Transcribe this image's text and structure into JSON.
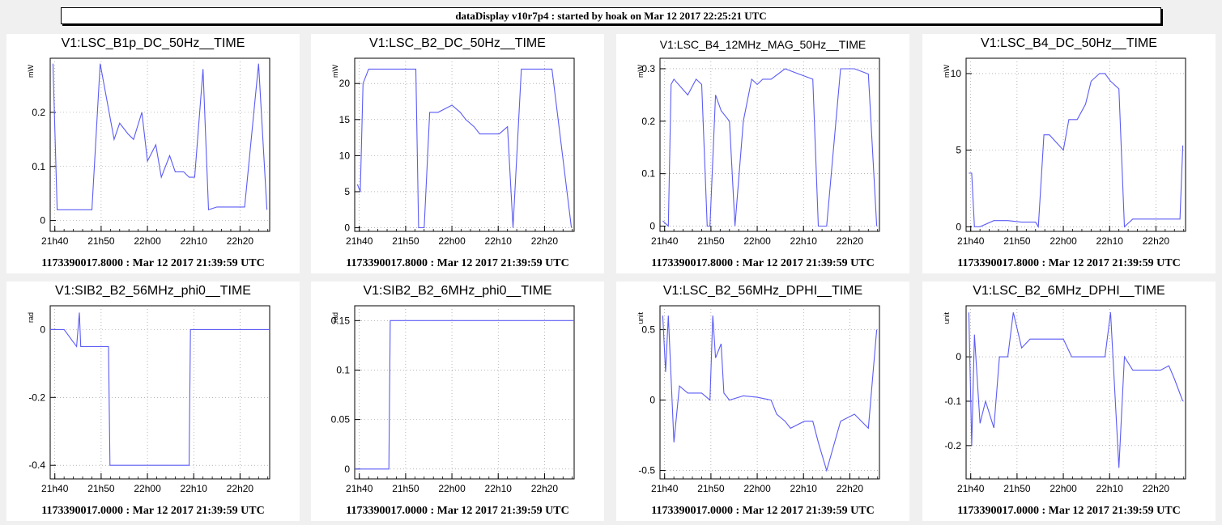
{
  "banner": "dataDisplay v10r7p4 : started by hoak on Mar 12 2017 22:25:21 UTC",
  "colors": {
    "trace": "#5b5bf5",
    "panel": "#ffffff",
    "background": "#f0f0f0"
  },
  "chart_data": [
    {
      "type": "line",
      "title": "V1:LSC_B1p_DC_50Hz__TIME",
      "ylabel": "mW",
      "footer": "1173390017.8000 : Mar 12 2017 21:39:59 UTC",
      "xlim": [
        21.65,
        22.44
      ],
      "ylim": [
        -0.02,
        0.3
      ],
      "x_ticks": [
        "21h40",
        "21h50",
        "22h00",
        "22h10",
        "22h20"
      ],
      "y_ticks": [
        0,
        0.1,
        0.2
      ],
      "y_tick_labels": [
        "0",
        "0.1",
        "0.2"
      ],
      "x": [
        21.66,
        21.675,
        21.7,
        21.75,
        21.8,
        21.83,
        21.88,
        21.9,
        21.93,
        21.95,
        21.98,
        22.0,
        22.03,
        22.05,
        22.08,
        22.1,
        22.13,
        22.15,
        22.17,
        22.2,
        22.22,
        22.25,
        22.3,
        22.35,
        22.4,
        22.43
      ],
      "y": [
        0.29,
        0.02,
        0.02,
        0.02,
        0.02,
        0.29,
        0.15,
        0.18,
        0.16,
        0.15,
        0.2,
        0.11,
        0.14,
        0.08,
        0.12,
        0.09,
        0.09,
        0.08,
        0.08,
        0.28,
        0.02,
        0.025,
        0.025,
        0.025,
        0.29,
        0.02
      ]
    },
    {
      "type": "line",
      "title": "V1:LSC_B2_DC_50Hz__TIME",
      "ylabel": "mW",
      "footer": "1173390017.8000 : Mar 12 2017 21:39:59 UTC",
      "xlim": [
        21.65,
        22.44
      ],
      "ylim": [
        -0.5,
        23.5
      ],
      "x_ticks": [
        "21h40",
        "21h50",
        "22h00",
        "22h10",
        "22h20"
      ],
      "y_ticks": [
        0,
        5,
        10,
        15,
        20
      ],
      "y_tick_labels": [
        "0",
        "5",
        "10",
        "15",
        "20"
      ],
      "x": [
        21.66,
        21.67,
        21.68,
        21.7,
        21.75,
        21.8,
        21.87,
        21.88,
        21.9,
        21.92,
        21.95,
        22.0,
        22.03,
        22.05,
        22.08,
        22.1,
        22.13,
        22.15,
        22.17,
        22.2,
        22.22,
        22.25,
        22.3,
        22.35,
        22.36,
        22.43
      ],
      "y": [
        6,
        5,
        20,
        22,
        22,
        22,
        22,
        0,
        0,
        16,
        16,
        17,
        16,
        15,
        14,
        13,
        13,
        13,
        13,
        14,
        0,
        22,
        22,
        22,
        22,
        0
      ]
    },
    {
      "type": "line",
      "title": "V1:LSC_B4_12MHz_MAG_50Hz__TIME",
      "ylabel": "mW",
      "footer": "1173390017.8000 : Mar 12 2017 21:39:59 UTC",
      "xlim": [
        21.65,
        22.44
      ],
      "ylim": [
        -0.01,
        0.32
      ],
      "x_ticks": [
        "21h40",
        "21h50",
        "22h00",
        "22h10",
        "22h20"
      ],
      "y_ticks": [
        0,
        0.1,
        0.2,
        0.3
      ],
      "y_tick_labels": [
        "0",
        "0.1",
        "0.2",
        "0.3"
      ],
      "x": [
        21.66,
        21.68,
        21.69,
        21.7,
        21.75,
        21.78,
        21.8,
        21.82,
        21.83,
        21.85,
        21.87,
        21.9,
        21.92,
        21.95,
        21.98,
        22.0,
        22.02,
        22.05,
        22.1,
        22.15,
        22.2,
        22.22,
        22.25,
        22.3,
        22.35,
        22.4,
        22.43
      ],
      "y": [
        0.01,
        0.0,
        0.27,
        0.28,
        0.25,
        0.28,
        0.27,
        0.0,
        0.0,
        0.25,
        0.22,
        0.2,
        0.0,
        0.2,
        0.28,
        0.27,
        0.28,
        0.28,
        0.3,
        0.29,
        0.28,
        0.0,
        0.0,
        0.3,
        0.3,
        0.29,
        0.0
      ]
    },
    {
      "type": "line",
      "title": "V1:LSC_B4_DC_50Hz__TIME",
      "ylabel": "mW",
      "footer": "1173390017.8000 : Mar 12 2017 21:39:59 UTC",
      "xlim": [
        21.65,
        22.44
      ],
      "ylim": [
        -0.3,
        11
      ],
      "x_ticks": [
        "21h40",
        "21h50",
        "22h00",
        "22h10",
        "22h20"
      ],
      "y_ticks": [
        0,
        5,
        10
      ],
      "y_tick_labels": [
        "0",
        "5",
        "10"
      ],
      "x": [
        21.66,
        21.67,
        21.68,
        21.7,
        21.75,
        21.8,
        21.85,
        21.9,
        21.91,
        21.93,
        21.95,
        22.0,
        22.02,
        22.05,
        22.08,
        22.1,
        22.13,
        22.15,
        22.17,
        22.2,
        22.22,
        22.25,
        22.3,
        22.35,
        22.42,
        22.43
      ],
      "y": [
        3.5,
        3.5,
        0,
        0,
        0.4,
        0.4,
        0.3,
        0.3,
        0,
        6,
        6,
        5,
        7,
        7,
        8,
        9.5,
        10,
        10,
        9.5,
        9,
        0,
        0.5,
        0.5,
        0.5,
        0.5,
        5.3
      ]
    },
    {
      "type": "line",
      "title": "V1:SIB2_B2_56MHz_phi0__TIME",
      "ylabel": "rad",
      "footer": "1173390017.0000 : Mar 12 2017 21:39:59 UTC",
      "xlim": [
        21.65,
        22.44
      ],
      "ylim": [
        -0.44,
        0.07
      ],
      "x_ticks": [
        "21h40",
        "21h50",
        "22h00",
        "22h10",
        "22h20"
      ],
      "y_ticks": [
        -0.4,
        -0.2,
        0
      ],
      "y_tick_labels": [
        "-0.4",
        "-0.2",
        "0"
      ],
      "x": [
        21.65,
        21.7,
        21.745,
        21.755,
        21.76,
        21.77,
        21.8,
        21.86,
        21.865,
        21.9,
        22.0,
        22.1,
        22.15,
        22.155,
        22.2,
        22.3,
        22.44
      ],
      "y": [
        0,
        0,
        -0.05,
        0.05,
        -0.05,
        -0.05,
        -0.05,
        -0.05,
        -0.4,
        -0.4,
        -0.4,
        -0.4,
        -0.4,
        0,
        0,
        0,
        0
      ]
    },
    {
      "type": "line",
      "title": "V1:SIB2_B2_6MHz_phi0__TIME",
      "ylabel": "rad",
      "footer": "1173390017.0000 : Mar 12 2017 21:39:59 UTC",
      "xlim": [
        21.65,
        22.44
      ],
      "ylim": [
        -0.01,
        0.165
      ],
      "x_ticks": [
        "21h40",
        "21h50",
        "22h00",
        "22h10",
        "22h20"
      ],
      "y_ticks": [
        0,
        0.05,
        0.1,
        0.15
      ],
      "y_tick_labels": [
        "0",
        "0.05",
        "0.1",
        "0.15"
      ],
      "x": [
        21.65,
        21.7,
        21.773,
        21.778,
        21.8,
        21.9,
        22.0,
        22.1,
        22.2,
        22.3,
        22.44
      ],
      "y": [
        0,
        0,
        0,
        0.15,
        0.15,
        0.15,
        0.15,
        0.15,
        0.15,
        0.15,
        0.15
      ]
    },
    {
      "type": "line",
      "title": "V1:LSC_B2_56MHz_DPHI__TIME",
      "ylabel": "unit",
      "footer": "1173390017.0000 : Mar 12 2017 21:39:59 UTC",
      "xlim": [
        21.65,
        22.44
      ],
      "ylim": [
        -0.56,
        0.67
      ],
      "x_ticks": [
        "21h40",
        "21h50",
        "22h00",
        "22h10",
        "22h20"
      ],
      "y_ticks": [
        -0.5,
        0,
        0.5
      ],
      "y_tick_labels": [
        "-0.5",
        "0",
        "0.5"
      ],
      "x": [
        21.66,
        21.67,
        21.68,
        21.7,
        21.72,
        21.75,
        21.8,
        21.83,
        21.84,
        21.85,
        21.87,
        21.88,
        21.9,
        21.95,
        22.0,
        22.05,
        22.07,
        22.1,
        22.12,
        22.15,
        22.17,
        22.2,
        22.22,
        22.25,
        22.3,
        22.35,
        22.4,
        22.43
      ],
      "y": [
        0.6,
        0.2,
        0.6,
        -0.3,
        0.1,
        0.05,
        0.05,
        0.0,
        0.6,
        0.3,
        0.4,
        0.05,
        0.0,
        0.03,
        0.02,
        0.0,
        -0.1,
        -0.15,
        -0.2,
        -0.17,
        -0.15,
        -0.15,
        -0.3,
        -0.5,
        -0.15,
        -0.1,
        -0.2,
        0.5
      ]
    },
    {
      "type": "line",
      "title": "V1:LSC_B2_6MHz_DPHI__TIME",
      "ylabel": "unit",
      "footer": "1173390017.0000 : Mar 12 2017 21:39:59 UTC",
      "xlim": [
        21.65,
        22.44
      ],
      "ylim": [
        -0.275,
        0.115
      ],
      "x_ticks": [
        "21h40",
        "21h50",
        "22h00",
        "22h10",
        "22h20"
      ],
      "y_ticks": [
        -0.2,
        -0.1,
        0
      ],
      "y_tick_labels": [
        "-0.2",
        "-0.1",
        "0"
      ],
      "x": [
        21.66,
        21.67,
        21.68,
        21.7,
        21.72,
        21.75,
        21.77,
        21.8,
        21.82,
        21.85,
        21.88,
        21.9,
        21.95,
        22.0,
        22.03,
        22.05,
        22.1,
        22.15,
        22.17,
        22.2,
        22.22,
        22.25,
        22.3,
        22.35,
        22.38,
        22.4,
        22.43
      ],
      "y": [
        0.1,
        -0.2,
        0.05,
        -0.15,
        -0.1,
        -0.16,
        0.0,
        0.0,
        0.1,
        0.02,
        0.04,
        0.04,
        0.04,
        0.04,
        0.0,
        0.0,
        0.0,
        0.0,
        0.1,
        -0.25,
        0.0,
        -0.03,
        -0.03,
        -0.03,
        -0.02,
        -0.05,
        -0.1
      ]
    }
  ]
}
